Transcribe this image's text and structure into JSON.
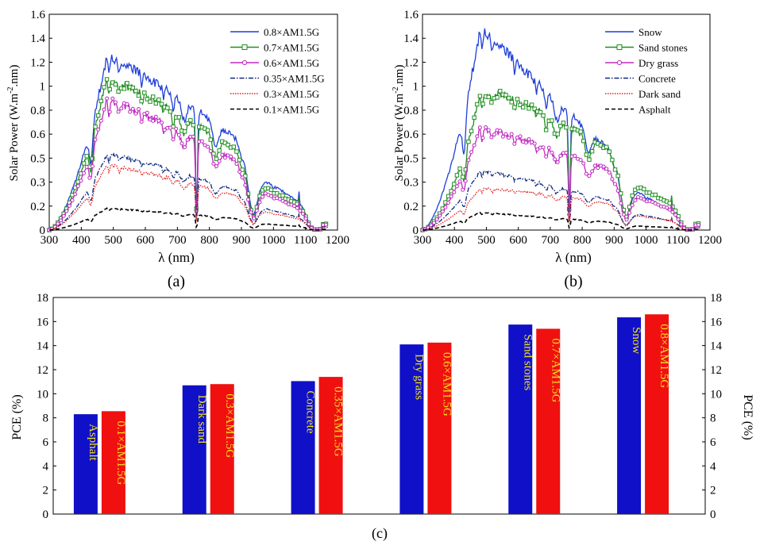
{
  "panel_labels": [
    "(a)",
    "(b)",
    "(c)"
  ],
  "chart_data": [
    {
      "id": "a",
      "type": "line",
      "xlabel": "λ (nm)",
      "ylabel_main": "Solar Power (W.m",
      "ylabel_sup": "-2",
      "ylabel_tail": ".nm)",
      "xlim": [
        300,
        1200
      ],
      "ylim": [
        0,
        1.6
      ],
      "xticks": [
        "300",
        "400",
        "500",
        "600",
        "700",
        "800",
        "900",
        "1000",
        "1100",
        "1200"
      ],
      "yticks": [
        "0",
        "0.2",
        "0.3",
        "0.5",
        "0.6",
        "0.8",
        "1",
        "1.2",
        "1.4",
        "1.6"
      ],
      "legend_position": "top-right",
      "series": [
        {
          "name": "0.8×AM1.5G",
          "scale": 0.8,
          "color": "#1f3fd8",
          "dash": "",
          "marker": "none"
        },
        {
          "name": "0.7×AM1.5G",
          "scale": 0.7,
          "color": "#1f8f1f",
          "dash": "",
          "marker": "square"
        },
        {
          "name": "0.6×AM1.5G",
          "scale": 0.6,
          "color": "#c02ac0",
          "dash": "",
          "marker": "circle"
        },
        {
          "name": "0.35×AM1.5G",
          "scale": 0.35,
          "color": "#0d2a80",
          "dash": "6,2,1.5,2",
          "marker": "none"
        },
        {
          "name": "0.3×AM1.5G",
          "scale": 0.3,
          "color": "#e61e1e",
          "dash": "1.5,1.5",
          "marker": "none"
        },
        {
          "name": "0.1×AM1.5G",
          "scale": 0.1,
          "color": "#000000",
          "dash": "5,3",
          "marker": "none"
        }
      ]
    },
    {
      "id": "b",
      "type": "line",
      "xlabel": "λ (nm)",
      "ylabel_main": "Solar Power (W.m",
      "ylabel_sup": "-2",
      "ylabel_tail": ".nm)",
      "xlim": [
        300,
        1200
      ],
      "ylim": [
        0,
        1.6
      ],
      "xticks": [
        "300",
        "400",
        "500",
        "600",
        "700",
        "800",
        "900",
        "1000",
        "1100",
        "1200"
      ],
      "yticks": [
        "0",
        "0.2",
        "0.3",
        "0.5",
        "0.6",
        "0.8",
        "1",
        "1.2",
        "1.4",
        "1.6"
      ],
      "legend_position": "top-right",
      "series": [
        {
          "name": "Snow",
          "color": "#1f3fd8",
          "dash": "",
          "marker": "none",
          "profile": "snow"
        },
        {
          "name": "Sand stones",
          "color": "#1f8f1f",
          "dash": "",
          "marker": "square",
          "profile": "sand"
        },
        {
          "name": "Dry grass",
          "color": "#c02ac0",
          "dash": "",
          "marker": "circle",
          "profile": "grass"
        },
        {
          "name": "Concrete",
          "color": "#0d2a80",
          "dash": "6,2,1.5,2",
          "marker": "none",
          "profile": "concrete"
        },
        {
          "name": "Dark sand",
          "color": "#e61e1e",
          "dash": "1.5,1.5",
          "marker": "none",
          "profile": "darksand"
        },
        {
          "name": "Asphalt",
          "color": "#000000",
          "dash": "5,3",
          "marker": "none",
          "profile": "asphalt"
        }
      ]
    },
    {
      "id": "c",
      "type": "bar",
      "ylabel_left": "PCE (%)",
      "ylabel_right": "PCE (%)",
      "ylim": [
        0,
        18
      ],
      "yticks": [
        "0",
        "2",
        "4",
        "6",
        "8",
        "10",
        "12",
        "14",
        "16",
        "18"
      ],
      "groups": [
        {
          "albedo_label": "Asphalt",
          "albedo_value": 8.3,
          "irr_label": "0.1×AM1.5G",
          "irr_value": 8.55
        },
        {
          "albedo_label": "Dark sand",
          "albedo_value": 10.7,
          "irr_label": "0.3×AM1.5G",
          "irr_value": 10.8
        },
        {
          "albedo_label": "Concrete",
          "albedo_value": 11.05,
          "irr_label": "0.35×AM1.5G",
          "irr_value": 11.4
        },
        {
          "albedo_label": "Dry grass",
          "albedo_value": 14.1,
          "irr_label": "0.6×AM1.5G",
          "irr_value": 14.25
        },
        {
          "albedo_label": "Sand stones",
          "albedo_value": 15.75,
          "irr_label": "0.7×AM1.5G",
          "irr_value": 15.4
        },
        {
          "albedo_label": "Snow",
          "albedo_value": 16.35,
          "irr_label": "0.8×AM1.5G",
          "irr_value": 16.6
        }
      ],
      "albedo_color": "#1010c8",
      "irr_color": "#f01010",
      "label_color": "#f0e020"
    }
  ]
}
